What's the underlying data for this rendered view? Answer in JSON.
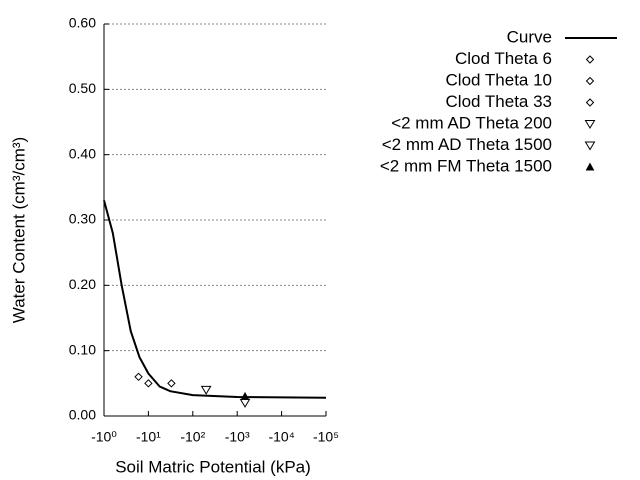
{
  "chart_data": {
    "type": "scatter",
    "x_label": "Soil Matric Potential (kPa)",
    "y_label": "Water Content (cm³/cm³)",
    "xscale": "log",
    "xlim": [
      -1,
      -100000
    ],
    "xticks": [
      {
        "value": -1,
        "label": "-10⁰"
      },
      {
        "value": -10,
        "label": "-10¹"
      },
      {
        "value": -100,
        "label": "-10²"
      },
      {
        "value": -1000,
        "label": "-10³"
      },
      {
        "value": -10000,
        "label": "-10⁴"
      },
      {
        "value": -100000,
        "label": "-10⁵"
      }
    ],
    "ylim": [
      0,
      0.6
    ],
    "yticks": [
      {
        "value": 0,
        "label": "0.00"
      },
      {
        "value": 0.1,
        "label": "0.10"
      },
      {
        "value": 0.2,
        "label": "0.20"
      },
      {
        "value": 0.3,
        "label": "0.30"
      },
      {
        "value": 0.4,
        "label": "0.40"
      },
      {
        "value": 0.5,
        "label": "0.50"
      },
      {
        "value": 0.6,
        "label": "0.60"
      }
    ],
    "grid": true,
    "legend": "right",
    "series": [
      {
        "name": "Curve",
        "marker": "line",
        "color": "#000000",
        "x": [
          -1,
          -1.58,
          -2.5,
          -4,
          -6.3,
          -10,
          -18,
          -31,
          -100,
          -1000,
          -100000
        ],
        "values": [
          0.33,
          0.28,
          0.2,
          0.13,
          0.09,
          0.065,
          0.045,
          0.038,
          0.032,
          0.029,
          0.028
        ]
      },
      {
        "name": "Clod Theta 6",
        "marker": "diamond",
        "color": "#000000",
        "x": [
          -6
        ],
        "values": [
          0.06
        ]
      },
      {
        "name": "Clod Theta 10",
        "marker": "diamond",
        "color": "#000000",
        "x": [
          -10
        ],
        "values": [
          0.05
        ]
      },
      {
        "name": "Clod Theta 33",
        "marker": "diamond",
        "color": "#000000",
        "x": [
          -33
        ],
        "values": [
          0.05
        ]
      },
      {
        "name": "<2 mm AD Theta 200",
        "marker": "triangle-down",
        "color": "#000000",
        "x": [
          -200
        ],
        "values": [
          0.04
        ]
      },
      {
        "name": "<2 mm AD Theta 1500",
        "marker": "triangle-down",
        "color": "#000000",
        "x": [
          -1500
        ],
        "values": [
          0.02
        ]
      },
      {
        "name": "<2 mm FM Theta 1500",
        "marker": "triangle-up",
        "color": "#000000",
        "x": [
          -1500
        ],
        "values": [
          0.03
        ]
      }
    ]
  }
}
